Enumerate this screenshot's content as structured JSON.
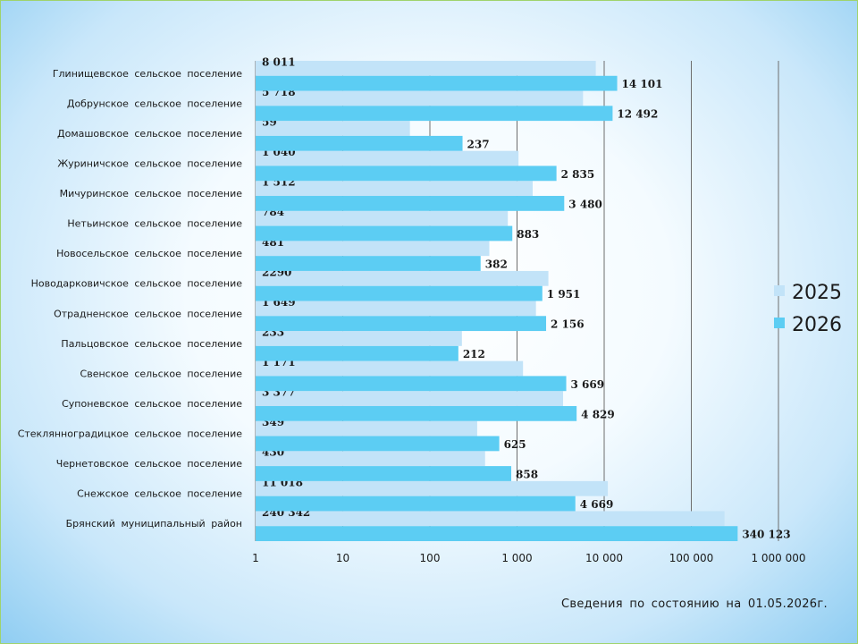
{
  "footnote": "Сведения по состоянию на 01.05.2026г.",
  "colors": {
    "series_2025": "#c2e3f8",
    "series_2026": "#5ccdf3",
    "gridline": "#6e6e6e"
  },
  "chart_data": {
    "type": "bar",
    "orientation": "horizontal",
    "scale": "log",
    "xlim": [
      1,
      1000000
    ],
    "ticks": [
      1,
      10,
      100,
      1000,
      10000,
      100000,
      1000000
    ],
    "tick_labels": [
      "1",
      "10",
      "100",
      "1 000",
      "10 000",
      "100 000",
      "1 000 000"
    ],
    "grid": true,
    "legend_position": "right",
    "categories": [
      "Глинищевское  сельское  поселение",
      "Добрунское  сельское  поселение",
      "Домашовское  сельское  поселение",
      "Журиничское  сельское  поселение",
      "Мичуринское  сельское  поселение",
      "Нетьинское  сельское  поселение",
      "Новосельское  сельское  поселение",
      "Новодарковичское  сельское  поселение",
      "Отрадненское  сельское  поселение",
      "Пальцовское  сельское  поселение",
      "Свенское  сельское  поселение",
      "Супоневское  сельское  поселение",
      "Стеклянноградицкое  сельское  поселение",
      "Чернетовское  сельское  поселение",
      "Снежское  сельское  поселение",
      "Брянский  муниципальный  район"
    ],
    "series": [
      {
        "name": "2025",
        "values": [
          8011,
          5718,
          59,
          1040,
          1512,
          784,
          481,
          2290,
          1649,
          233,
          1171,
          3377,
          349,
          430,
          11018,
          240342
        ],
        "labels": [
          "8 011",
          "5 718",
          "59",
          "1 040",
          "1 512",
          "784",
          "481",
          "2290",
          "1 649",
          "233",
          "1 171",
          "3 377",
          "349",
          "430",
          "11 018",
          "240 342"
        ]
      },
      {
        "name": "2026",
        "values": [
          14101,
          12492,
          237,
          2835,
          3480,
          883,
          382,
          1951,
          2156,
          212,
          3669,
          4829,
          625,
          858,
          4669,
          340123
        ],
        "labels": [
          "14 101",
          "12 492",
          "237",
          "2 835",
          "3 480",
          "883",
          "382",
          "1 951",
          "2 156",
          "212",
          "3 669",
          "4 829",
          "625",
          "858",
          "4 669",
          "340 123"
        ]
      }
    ]
  }
}
